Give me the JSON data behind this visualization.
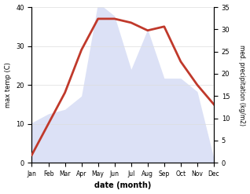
{
  "months": [
    "Jan",
    "Feb",
    "Mar",
    "Apr",
    "May",
    "Jun",
    "Jul",
    "Aug",
    "Sep",
    "Oct",
    "Nov",
    "Dec"
  ],
  "temperature": [
    2,
    10,
    18,
    29,
    37,
    37,
    36,
    34,
    35,
    26,
    20,
    15
  ],
  "precipitation_kg": [
    9,
    11,
    12,
    15,
    36,
    33,
    21,
    30,
    19,
    19,
    16,
    1
  ],
  "temp_color": "#c0392b",
  "precip_color_fill": "#c5cef0",
  "temp_ylim": [
    0,
    40
  ],
  "precip_ylim": [
    0,
    35
  ],
  "temp_yticks": [
    0,
    10,
    20,
    30,
    40
  ],
  "precip_yticks": [
    0,
    5,
    10,
    15,
    20,
    25,
    30,
    35
  ],
  "xlabel": "date (month)",
  "ylabel_left": "max temp (C)",
  "ylabel_right": "med. precipitation (kg/m2)",
  "background_color": "#ffffff",
  "line_width": 2.0
}
